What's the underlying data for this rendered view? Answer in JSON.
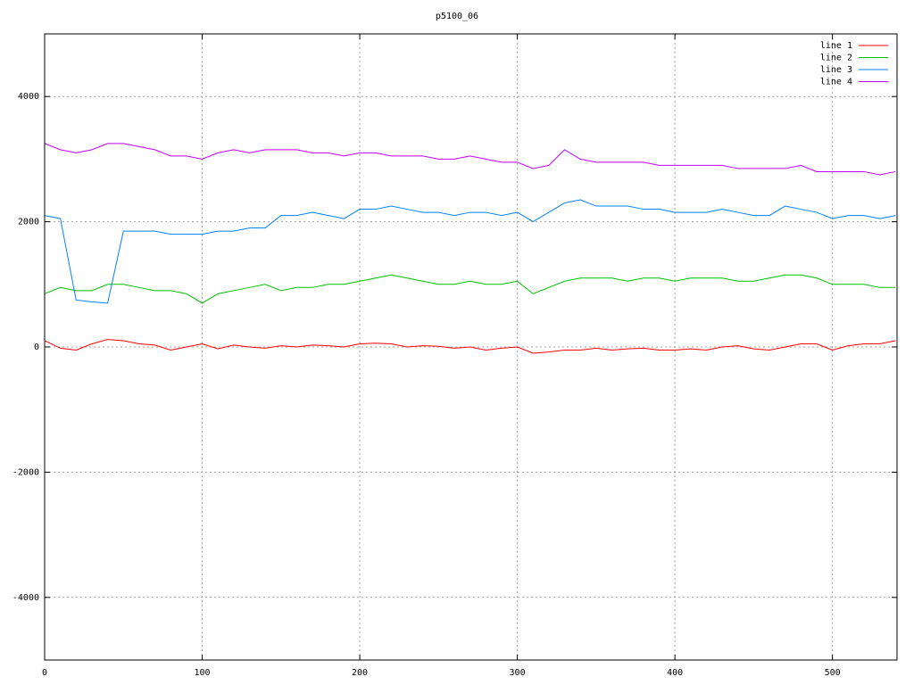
{
  "chart_data": {
    "type": "line",
    "title": "p5100_06",
    "x": [
      0,
      10,
      20,
      30,
      40,
      50,
      60,
      70,
      80,
      90,
      100,
      110,
      120,
      130,
      140,
      150,
      160,
      170,
      180,
      190,
      200,
      210,
      220,
      230,
      240,
      250,
      260,
      270,
      280,
      290,
      300,
      310,
      320,
      330,
      340,
      350,
      360,
      370,
      380,
      390,
      400,
      410,
      420,
      430,
      440,
      450,
      460,
      470,
      480,
      490,
      500,
      510,
      520,
      530,
      540
    ],
    "series": [
      {
        "name": "line 1",
        "color": "#ff0000",
        "values": [
          100,
          -20,
          -50,
          50,
          120,
          100,
          50,
          30,
          -50,
          0,
          50,
          -30,
          30,
          0,
          -20,
          20,
          0,
          30,
          20,
          0,
          50,
          60,
          50,
          0,
          20,
          10,
          -20,
          0,
          -50,
          -20,
          0,
          -100,
          -80,
          -50,
          -50,
          -20,
          -50,
          -30,
          -20,
          -50,
          -50,
          -30,
          -50,
          0,
          20,
          -30,
          -50,
          0,
          50,
          50,
          -50,
          20,
          50,
          50,
          100
        ]
      },
      {
        "name": "line 2",
        "color": "#00c000",
        "values": [
          850,
          950,
          900,
          900,
          1000,
          1000,
          950,
          900,
          900,
          850,
          700,
          850,
          900,
          950,
          1000,
          900,
          950,
          950,
          1000,
          1000,
          1050,
          1100,
          1150,
          1100,
          1050,
          1000,
          1000,
          1050,
          1000,
          1000,
          1050,
          850,
          950,
          1050,
          1100,
          1100,
          1100,
          1050,
          1100,
          1100,
          1050,
          1100,
          1100,
          1100,
          1050,
          1050,
          1100,
          1150,
          1150,
          1100,
          1000,
          1000,
          1000,
          950,
          950
        ]
      },
      {
        "name": "line 3",
        "color": "#0080ff",
        "values": [
          2100,
          2050,
          750,
          720,
          700,
          1850,
          1850,
          1850,
          1800,
          1800,
          1800,
          1850,
          1850,
          1900,
          1900,
          2100,
          2100,
          2150,
          2100,
          2050,
          2200,
          2200,
          2250,
          2200,
          2150,
          2150,
          2100,
          2150,
          2150,
          2100,
          2150,
          2000,
          2150,
          2300,
          2350,
          2250,
          2250,
          2250,
          2200,
          2200,
          2150,
          2150,
          2150,
          2200,
          2150,
          2100,
          2100,
          2250,
          2200,
          2150,
          2050,
          2100,
          2100,
          2050,
          2100
        ]
      },
      {
        "name": "line 4",
        "color": "#c000ff",
        "values": [
          3250,
          3150,
          3100,
          3150,
          3250,
          3250,
          3200,
          3150,
          3050,
          3050,
          3000,
          3100,
          3150,
          3100,
          3150,
          3150,
          3150,
          3100,
          3100,
          3050,
          3100,
          3100,
          3050,
          3050,
          3050,
          3000,
          3000,
          3050,
          3000,
          2950,
          2950,
          2850,
          2900,
          3150,
          3000,
          2950,
          2950,
          2950,
          2950,
          2900,
          2900,
          2900,
          2900,
          2900,
          2850,
          2850,
          2850,
          2850,
          2900,
          2800,
          2800,
          2800,
          2800,
          2750,
          2800
        ]
      }
    ],
    "xlim": [
      0,
      541
    ],
    "xticks": [
      0,
      100,
      200,
      300,
      400,
      500
    ],
    "ylim": [
      -5000,
      5000
    ],
    "yticks": [
      -4000,
      -2000,
      0,
      2000,
      4000
    ],
    "grid": true,
    "legend": "top-right"
  }
}
